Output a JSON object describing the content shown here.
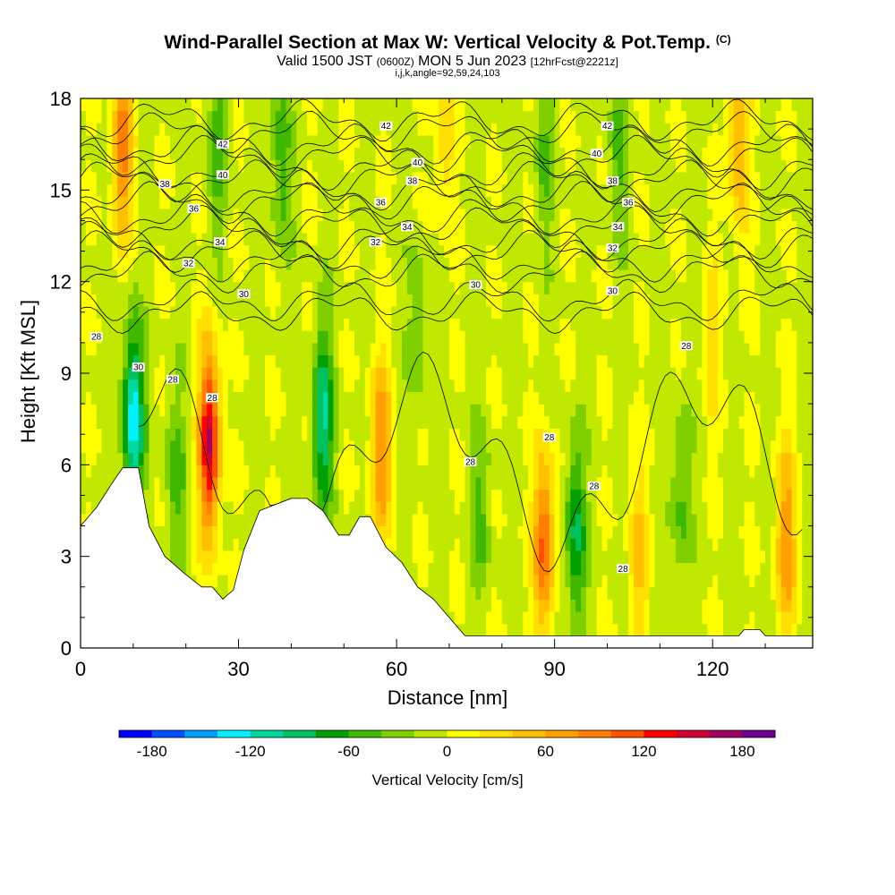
{
  "chart_data": {
    "type": "heatmap",
    "title": "Wind-Parallel Section at Max W: Vertical Velocity & Pot.Temp.",
    "title_mark": "(C)",
    "subtitle_main": "Valid 1500 JST",
    "subtitle_utc": "(0600Z)",
    "subtitle_date": "MON 5 Jun 2023",
    "subtitle_fcst": "[12hrFcst@2221z]",
    "subsubtitle": "i,j,k,angle=92,59,24,103",
    "xlabel": "Distance [nm]",
    "ylabel": "Height [Kft MSL]",
    "xlim": [
      0,
      139
    ],
    "ylim": [
      0,
      18
    ],
    "xticks": [
      "0",
      "30",
      "60",
      "90",
      "120"
    ],
    "xtick_values": [
      0,
      30,
      60,
      90,
      120
    ],
    "yticks": [
      "0",
      "3",
      "6",
      "9",
      "12",
      "15",
      "18"
    ],
    "ytick_values": [
      0,
      3,
      6,
      9,
      12,
      15,
      18
    ],
    "colorbar": {
      "label": "Vertical Velocity [cm/s]",
      "ticks": [
        "-180",
        "-120",
        "-60",
        "0",
        "60",
        "120",
        "180"
      ],
      "tick_values": [
        -180,
        -120,
        -60,
        0,
        60,
        120,
        180
      ],
      "range": [
        -200,
        200
      ],
      "colors": [
        "#0000ff",
        "#0050ff",
        "#00a0ff",
        "#00f0ff",
        "#00d8a0",
        "#00c060",
        "#00a000",
        "#40b800",
        "#80d000",
        "#c0e800",
        "#ffff00",
        "#ffe000",
        "#ffc000",
        "#ffa000",
        "#ff8000",
        "#ff5000",
        "#ff0000",
        "#d00030",
        "#a00060",
        "#700090"
      ]
    },
    "terrain": [
      [
        0,
        4.0
      ],
      [
        3,
        4.6
      ],
      [
        6,
        5.4
      ],
      [
        8,
        5.9
      ],
      [
        11,
        5.9
      ],
      [
        13,
        4.0
      ],
      [
        16,
        3.0
      ],
      [
        20,
        2.4
      ],
      [
        23,
        2.0
      ],
      [
        25,
        2.0
      ],
      [
        27,
        1.6
      ],
      [
        29,
        1.9
      ],
      [
        31,
        3.2
      ],
      [
        34,
        4.5
      ],
      [
        37,
        4.7
      ],
      [
        40,
        4.9
      ],
      [
        43,
        4.9
      ],
      [
        46,
        4.5
      ],
      [
        49,
        3.7
      ],
      [
        51,
        3.7
      ],
      [
        53,
        4.3
      ],
      [
        55,
        4.3
      ],
      [
        58,
        3.3
      ],
      [
        61,
        2.8
      ],
      [
        64,
        2.0
      ],
      [
        67,
        1.6
      ],
      [
        70,
        1.0
      ],
      [
        73,
        0.4
      ],
      [
        100,
        0.4
      ],
      [
        125,
        0.4
      ],
      [
        126,
        0.6
      ],
      [
        129,
        0.6
      ],
      [
        130,
        0.4
      ],
      [
        139,
        0.4
      ]
    ],
    "w_anomalies": [
      {
        "x": 24.5,
        "z": 6.8,
        "w": 160
      },
      {
        "x": 8,
        "z": 16.5,
        "w": 90
      },
      {
        "x": 10,
        "z": 7.5,
        "w": -130
      },
      {
        "x": 57,
        "z": 6.5,
        "w": 80
      },
      {
        "x": 46,
        "z": 7.5,
        "w": -100
      },
      {
        "x": 88,
        "z": 3.5,
        "w": 110
      },
      {
        "x": 94,
        "z": 3.8,
        "w": -80
      },
      {
        "x": 134,
        "z": 3.5,
        "w": 80
      },
      {
        "x": 125,
        "z": 16.5,
        "w": 70
      },
      {
        "x": 38,
        "z": 16.0,
        "w": -50
      },
      {
        "x": 26,
        "z": 16.5,
        "w": -45
      },
      {
        "x": 102,
        "z": 16.0,
        "w": -40
      },
      {
        "x": 76,
        "z": 4.5,
        "w": -40
      },
      {
        "x": 18,
        "z": 5.5,
        "w": -45
      },
      {
        "x": 64,
        "z": 10.5,
        "w": -35
      },
      {
        "x": 114,
        "z": 5.0,
        "w": -45
      },
      {
        "x": 106,
        "z": 3.0,
        "w": 50
      },
      {
        "x": 69,
        "z": 16.5,
        "w": 40
      },
      {
        "x": 88,
        "z": 16.0,
        "w": -35
      },
      {
        "x": 120,
        "z": 10.0,
        "w": 30
      }
    ],
    "theta_levels": [
      28,
      30,
      32,
      34,
      36,
      38,
      40,
      42
    ],
    "theta_labels": [
      {
        "x": 3,
        "z": 10.2,
        "t": "28"
      },
      {
        "x": 11,
        "z": 9.2,
        "t": "30"
      },
      {
        "x": 17.5,
        "z": 8.8,
        "t": "28"
      },
      {
        "x": 25,
        "z": 8.2,
        "t": "28"
      },
      {
        "x": 31,
        "z": 11.6,
        "t": "30"
      },
      {
        "x": 20.5,
        "z": 12.6,
        "t": "32"
      },
      {
        "x": 26.5,
        "z": 13.3,
        "t": "34"
      },
      {
        "x": 21.5,
        "z": 14.4,
        "t": "36"
      },
      {
        "x": 16,
        "z": 15.2,
        "t": "38"
      },
      {
        "x": 27,
        "z": 15.5,
        "t": "40"
      },
      {
        "x": 27,
        "z": 16.5,
        "t": "42"
      },
      {
        "x": 58,
        "z": 17.1,
        "t": "42"
      },
      {
        "x": 64,
        "z": 15.9,
        "t": "40"
      },
      {
        "x": 63,
        "z": 15.3,
        "t": "38"
      },
      {
        "x": 57,
        "z": 14.6,
        "t": "36"
      },
      {
        "x": 62,
        "z": 13.8,
        "t": "34"
      },
      {
        "x": 56,
        "z": 13.3,
        "t": "32"
      },
      {
        "x": 75,
        "z": 11.9,
        "t": "30"
      },
      {
        "x": 74,
        "z": 6.1,
        "t": "28"
      },
      {
        "x": 89,
        "z": 6.9,
        "t": "28"
      },
      {
        "x": 97.5,
        "z": 5.3,
        "t": "28"
      },
      {
        "x": 103,
        "z": 2.6,
        "t": "28"
      },
      {
        "x": 100,
        "z": 17.1,
        "t": "42"
      },
      {
        "x": 98,
        "z": 16.2,
        "t": "40"
      },
      {
        "x": 101,
        "z": 15.3,
        "t": "38"
      },
      {
        "x": 104,
        "z": 14.6,
        "t": "36"
      },
      {
        "x": 102,
        "z": 13.8,
        "t": "34"
      },
      {
        "x": 101,
        "z": 13.1,
        "t": "32"
      },
      {
        "x": 101,
        "z": 11.7,
        "t": "30"
      },
      {
        "x": 115,
        "z": 9.9,
        "t": "28"
      }
    ]
  }
}
